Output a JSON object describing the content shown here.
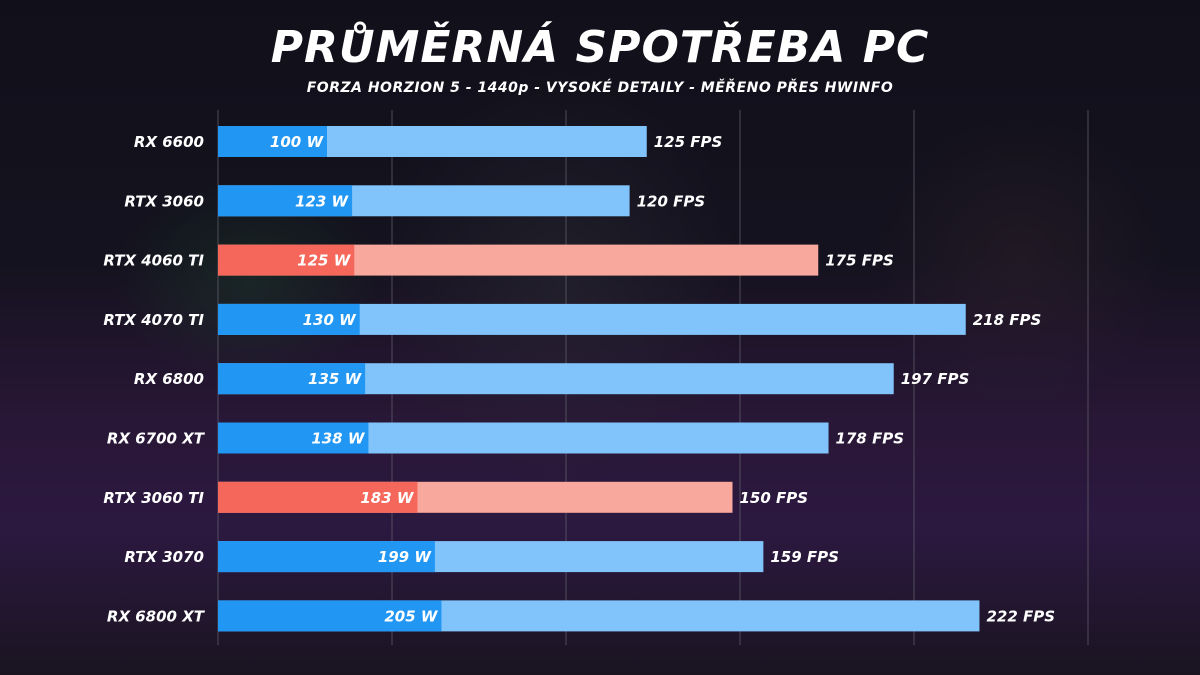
{
  "chart_data": {
    "type": "bar",
    "orientation": "horizontal",
    "title": "PRŮMĚRNÁ SPOTŘEBA PC",
    "subtitle": "FORZA HORZION 5 - 1440p - VYSOKÉ DETAILY - MĚŘENO PŘES HWINFO",
    "categories": [
      "RX 6600",
      "RTX 3060",
      "RTX 4060 TI",
      "RTX 4070 TI",
      "RX 6800",
      "RX 6700 XT",
      "RTX 3060 TI",
      "RTX 3070",
      "RX 6800 XT"
    ],
    "series": [
      {
        "values": [
          100,
          123,
          125,
          130,
          135,
          138,
          183,
          199,
          205
        ],
        "labels": [
          "100 W",
          "123 W",
          "125 W",
          "130 W",
          "135 W",
          "138 W",
          "183 W",
          "199 W",
          "205 W"
        ]
      },
      {
        "values": [
          125,
          120,
          175,
          218,
          197,
          178,
          150,
          159,
          222
        ],
        "labels": [
          "125 FPS",
          "120 FPS",
          "175 FPS",
          "218 FPS",
          "197 FPS",
          "178 FPS",
          "150 FPS",
          "159 FPS",
          "222 FPS"
        ]
      }
    ],
    "highlighted": [
      "RTX 4060 TI",
      "RTX 3060 TI"
    ],
    "xlim": [
      0,
      250
    ],
    "grid": true,
    "legend": "none",
    "colors": {
      "power_default": "#2196f3",
      "fps_default": "#80c4fb",
      "power_highlight": "#f5675a",
      "fps_highlight": "#f9a89d",
      "grid": "#5c5a66"
    }
  }
}
